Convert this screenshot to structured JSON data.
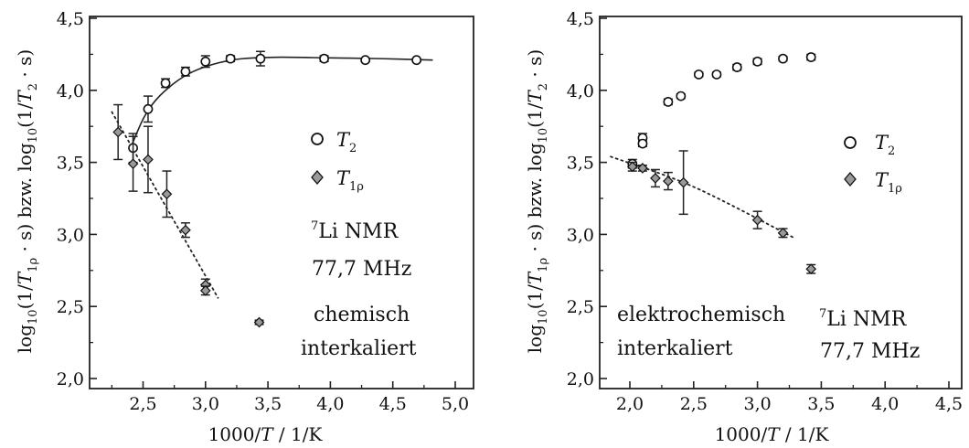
{
  "chart_data": [
    {
      "type": "scatter",
      "ylabel": "log10(1/T1ρ · s) bzw. log10(1/T2 · s)",
      "xlabel": "1000/T / 1/K",
      "xlim": [
        2.0,
        5.0
      ],
      "ylim": [
        1.95,
        4.52
      ],
      "xticks": [
        "2,5",
        "3,0",
        "3,5",
        "4,0",
        "4,5",
        "5,0"
      ],
      "yticks": [
        "2,0",
        "2,5",
        "3,0",
        "3,5",
        "4,0",
        "4,5"
      ],
      "legend": {
        "placement": "right-middle",
        "entries": [
          "T2",
          "T1ρ"
        ]
      },
      "annotations": [
        "⁷Li NMR",
        "77,7 MHz",
        "chemisch",
        "interkaliert"
      ],
      "series": [
        {
          "name": "T2",
          "marker": "circle",
          "x": [
            2.42,
            2.54,
            2.68,
            2.84,
            3.0,
            3.2,
            3.44,
            3.95,
            4.28,
            4.69
          ],
          "y": [
            3.6,
            3.87,
            4.05,
            4.13,
            4.2,
            4.22,
            4.22,
            4.22,
            4.21,
            4.21
          ],
          "err": [
            0.1,
            0.09,
            0.03,
            0.03,
            0.04,
            0.02,
            0.05,
            0.02,
            0.01,
            0.01
          ]
        },
        {
          "name": "T1ρ",
          "marker": "diamond",
          "x": [
            2.3,
            2.42,
            2.54,
            2.69,
            2.84,
            3.0,
            3.0,
            3.43
          ],
          "y": [
            3.71,
            3.49,
            3.52,
            3.28,
            3.03,
            2.65,
            2.61,
            2.39
          ],
          "err": [
            0.19,
            0.19,
            0.23,
            0.16,
            0.05,
            0.04,
            0.03,
            0.015
          ]
        }
      ],
      "fits": [
        {
          "style": "solid",
          "series": "T2",
          "x": [
            2.4,
            2.5,
            2.6,
            2.75,
            2.9,
            3.1,
            3.3,
            3.6,
            4.0,
            4.4,
            4.82
          ],
          "y": [
            3.6,
            3.8,
            3.93,
            4.05,
            4.13,
            4.19,
            4.22,
            4.23,
            4.225,
            4.22,
            4.21
          ]
        },
        {
          "style": "dotted",
          "series": "T1ρ",
          "x": [
            2.25,
            3.1
          ],
          "y": [
            3.85,
            2.56
          ]
        }
      ]
    },
    {
      "type": "scatter",
      "ylabel": "log10(1/T1ρ · s) bzw. log10(1/T2 · s)",
      "xlabel": "1000/T / 1/K",
      "xlim": [
        1.7,
        4.55
      ],
      "ylim": [
        1.95,
        4.52
      ],
      "xticks": [
        "2,0",
        "2,5",
        "3,0",
        "3,5",
        "4,0",
        "4,5"
      ],
      "yticks": [
        "2,0",
        "2,5",
        "3,0",
        "3,5",
        "4,0",
        "4,5"
      ],
      "legend": {
        "placement": "right-middle",
        "entries": [
          "T2",
          "T1ρ"
        ]
      },
      "annotations": [
        "elektrochemisch",
        "interkaliert",
        "⁷Li NMR",
        "77,7 MHz"
      ],
      "series": [
        {
          "name": "T2",
          "marker": "circle",
          "x": [
            2.02,
            2.1,
            2.1,
            2.3,
            2.4,
            2.54,
            2.68,
            2.84,
            3.0,
            3.2,
            3.42
          ],
          "y": [
            3.49,
            3.67,
            3.63,
            3.92,
            3.96,
            4.11,
            4.11,
            4.16,
            4.2,
            4.22,
            4.23
          ],
          "err": [
            0.03,
            0.03,
            0.02,
            0.02,
            0.015,
            0.015,
            0.015,
            0.02,
            0.02,
            0.015,
            0.02
          ]
        },
        {
          "name": "T1ρ",
          "marker": "diamond",
          "x": [
            2.02,
            2.1,
            2.2,
            2.3,
            2.42,
            3.0,
            3.2,
            3.42
          ],
          "y": [
            3.47,
            3.46,
            3.39,
            3.37,
            3.36,
            3.1,
            3.01,
            2.76
          ],
          "err": [
            0.03,
            0.02,
            0.06,
            0.06,
            0.22,
            0.06,
            0.03,
            0.03
          ]
        }
      ],
      "fits": [
        {
          "style": "dotted",
          "series": "T1ρ",
          "x": [
            1.85,
            2.5,
            3.3
          ],
          "y": [
            3.54,
            3.33,
            2.97
          ]
        }
      ]
    }
  ]
}
